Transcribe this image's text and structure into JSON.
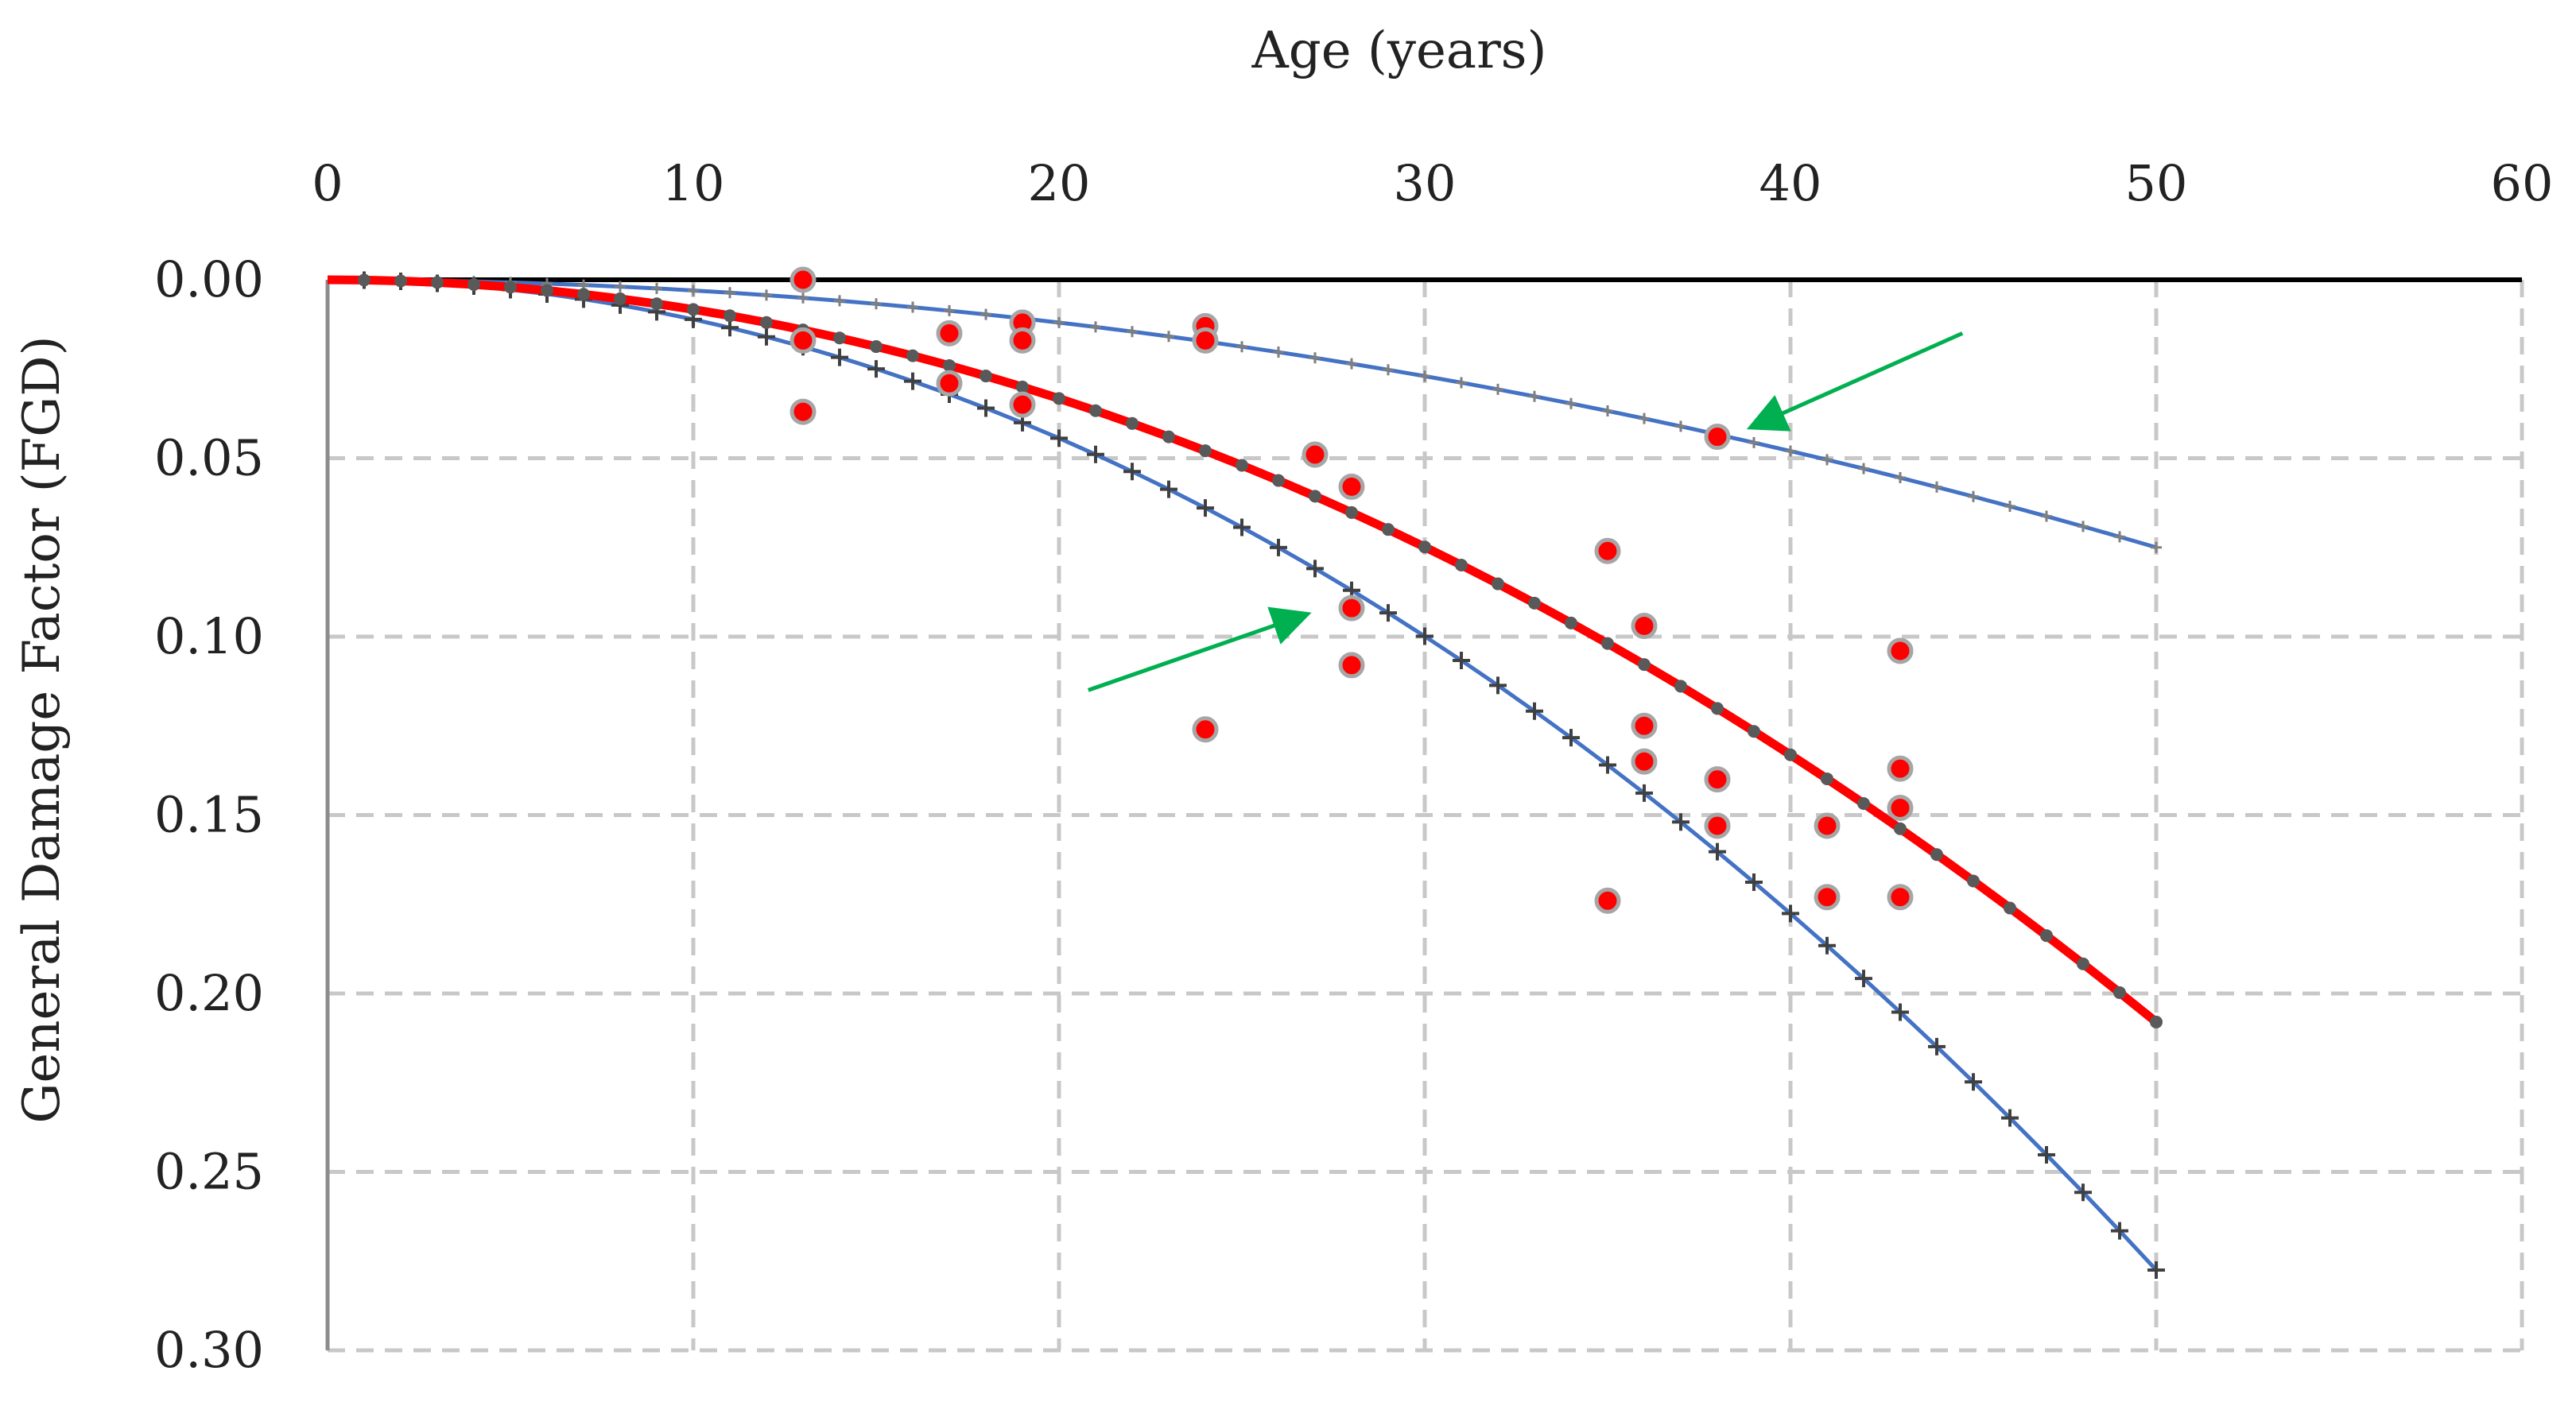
{
  "chart_data": {
    "type": "scatter",
    "title": "",
    "xlabel": "Age (years)",
    "ylabel": "General Damage Factor (FGD)",
    "x_axis_position": "top",
    "y_axis_inverted": true,
    "xlim": [
      0,
      60
    ],
    "ylim": [
      0,
      0.3
    ],
    "x_ticks": [
      0,
      10,
      20,
      30,
      40,
      50,
      60
    ],
    "y_ticks": [
      0,
      0.05,
      0.1,
      0.15,
      0.2,
      0.25,
      0.3
    ],
    "x_tick_labels": [
      "0",
      "10",
      "20",
      "30",
      "40",
      "50",
      "60"
    ],
    "y_tick_labels": [
      "0.00",
      "0.05",
      "0.10",
      "0.15",
      "0.20",
      "0.25",
      "0.30"
    ],
    "grid": "dashed",
    "series": [
      {
        "name": "upper-bound-curve",
        "kind": "line",
        "color": "#4472C4",
        "marker": "plus",
        "marker_color": "#7f7f7f",
        "model": "y = a * x^2",
        "a": 3e-05,
        "x_range": [
          0,
          50
        ],
        "step": 1
      },
      {
        "name": "lower-bound-curve",
        "kind": "line",
        "color": "#4472C4",
        "marker": "plus",
        "marker_color": "#404040",
        "model": "y = a * x^2",
        "a": 0.000111,
        "x_range": [
          0,
          50
        ],
        "step": 1
      },
      {
        "name": "mean-curve",
        "kind": "line",
        "color": "#ff0000",
        "marker": "dot",
        "marker_color": "#595959",
        "model": "y = a * x^2",
        "a": 8.32e-05,
        "x_range": [
          0,
          50
        ],
        "step": 1
      },
      {
        "name": "observed-data",
        "kind": "scatter",
        "color": "#ff0000",
        "edge_color": "#a6a6a6",
        "x": [
          13,
          13,
          13,
          17,
          17,
          19,
          19,
          19,
          24,
          24,
          24,
          27,
          28,
          28,
          28,
          35,
          35,
          36,
          36,
          36,
          38,
          38,
          38,
          41,
          41,
          43,
          43,
          43,
          43
        ],
        "y": [
          0.0,
          0.017,
          0.037,
          0.015,
          0.029,
          0.012,
          0.017,
          0.035,
          0.013,
          0.017,
          0.126,
          0.049,
          0.058,
          0.092,
          0.108,
          0.076,
          0.174,
          0.097,
          0.125,
          0.135,
          0.044,
          0.14,
          0.153,
          0.153,
          0.173,
          0.104,
          0.137,
          0.148,
          0.173
        ]
      }
    ],
    "annotations": [
      {
        "name": "arrow-upper-curve",
        "type": "arrow",
        "color": "#00b050",
        "from": [
          44.7,
          0.015
        ],
        "to": [
          39,
          0.041
        ]
      },
      {
        "name": "arrow-lower-curve",
        "type": "arrow",
        "color": "#00b050",
        "from": [
          20.8,
          0.115
        ],
        "to": [
          26.7,
          0.094
        ]
      }
    ]
  }
}
